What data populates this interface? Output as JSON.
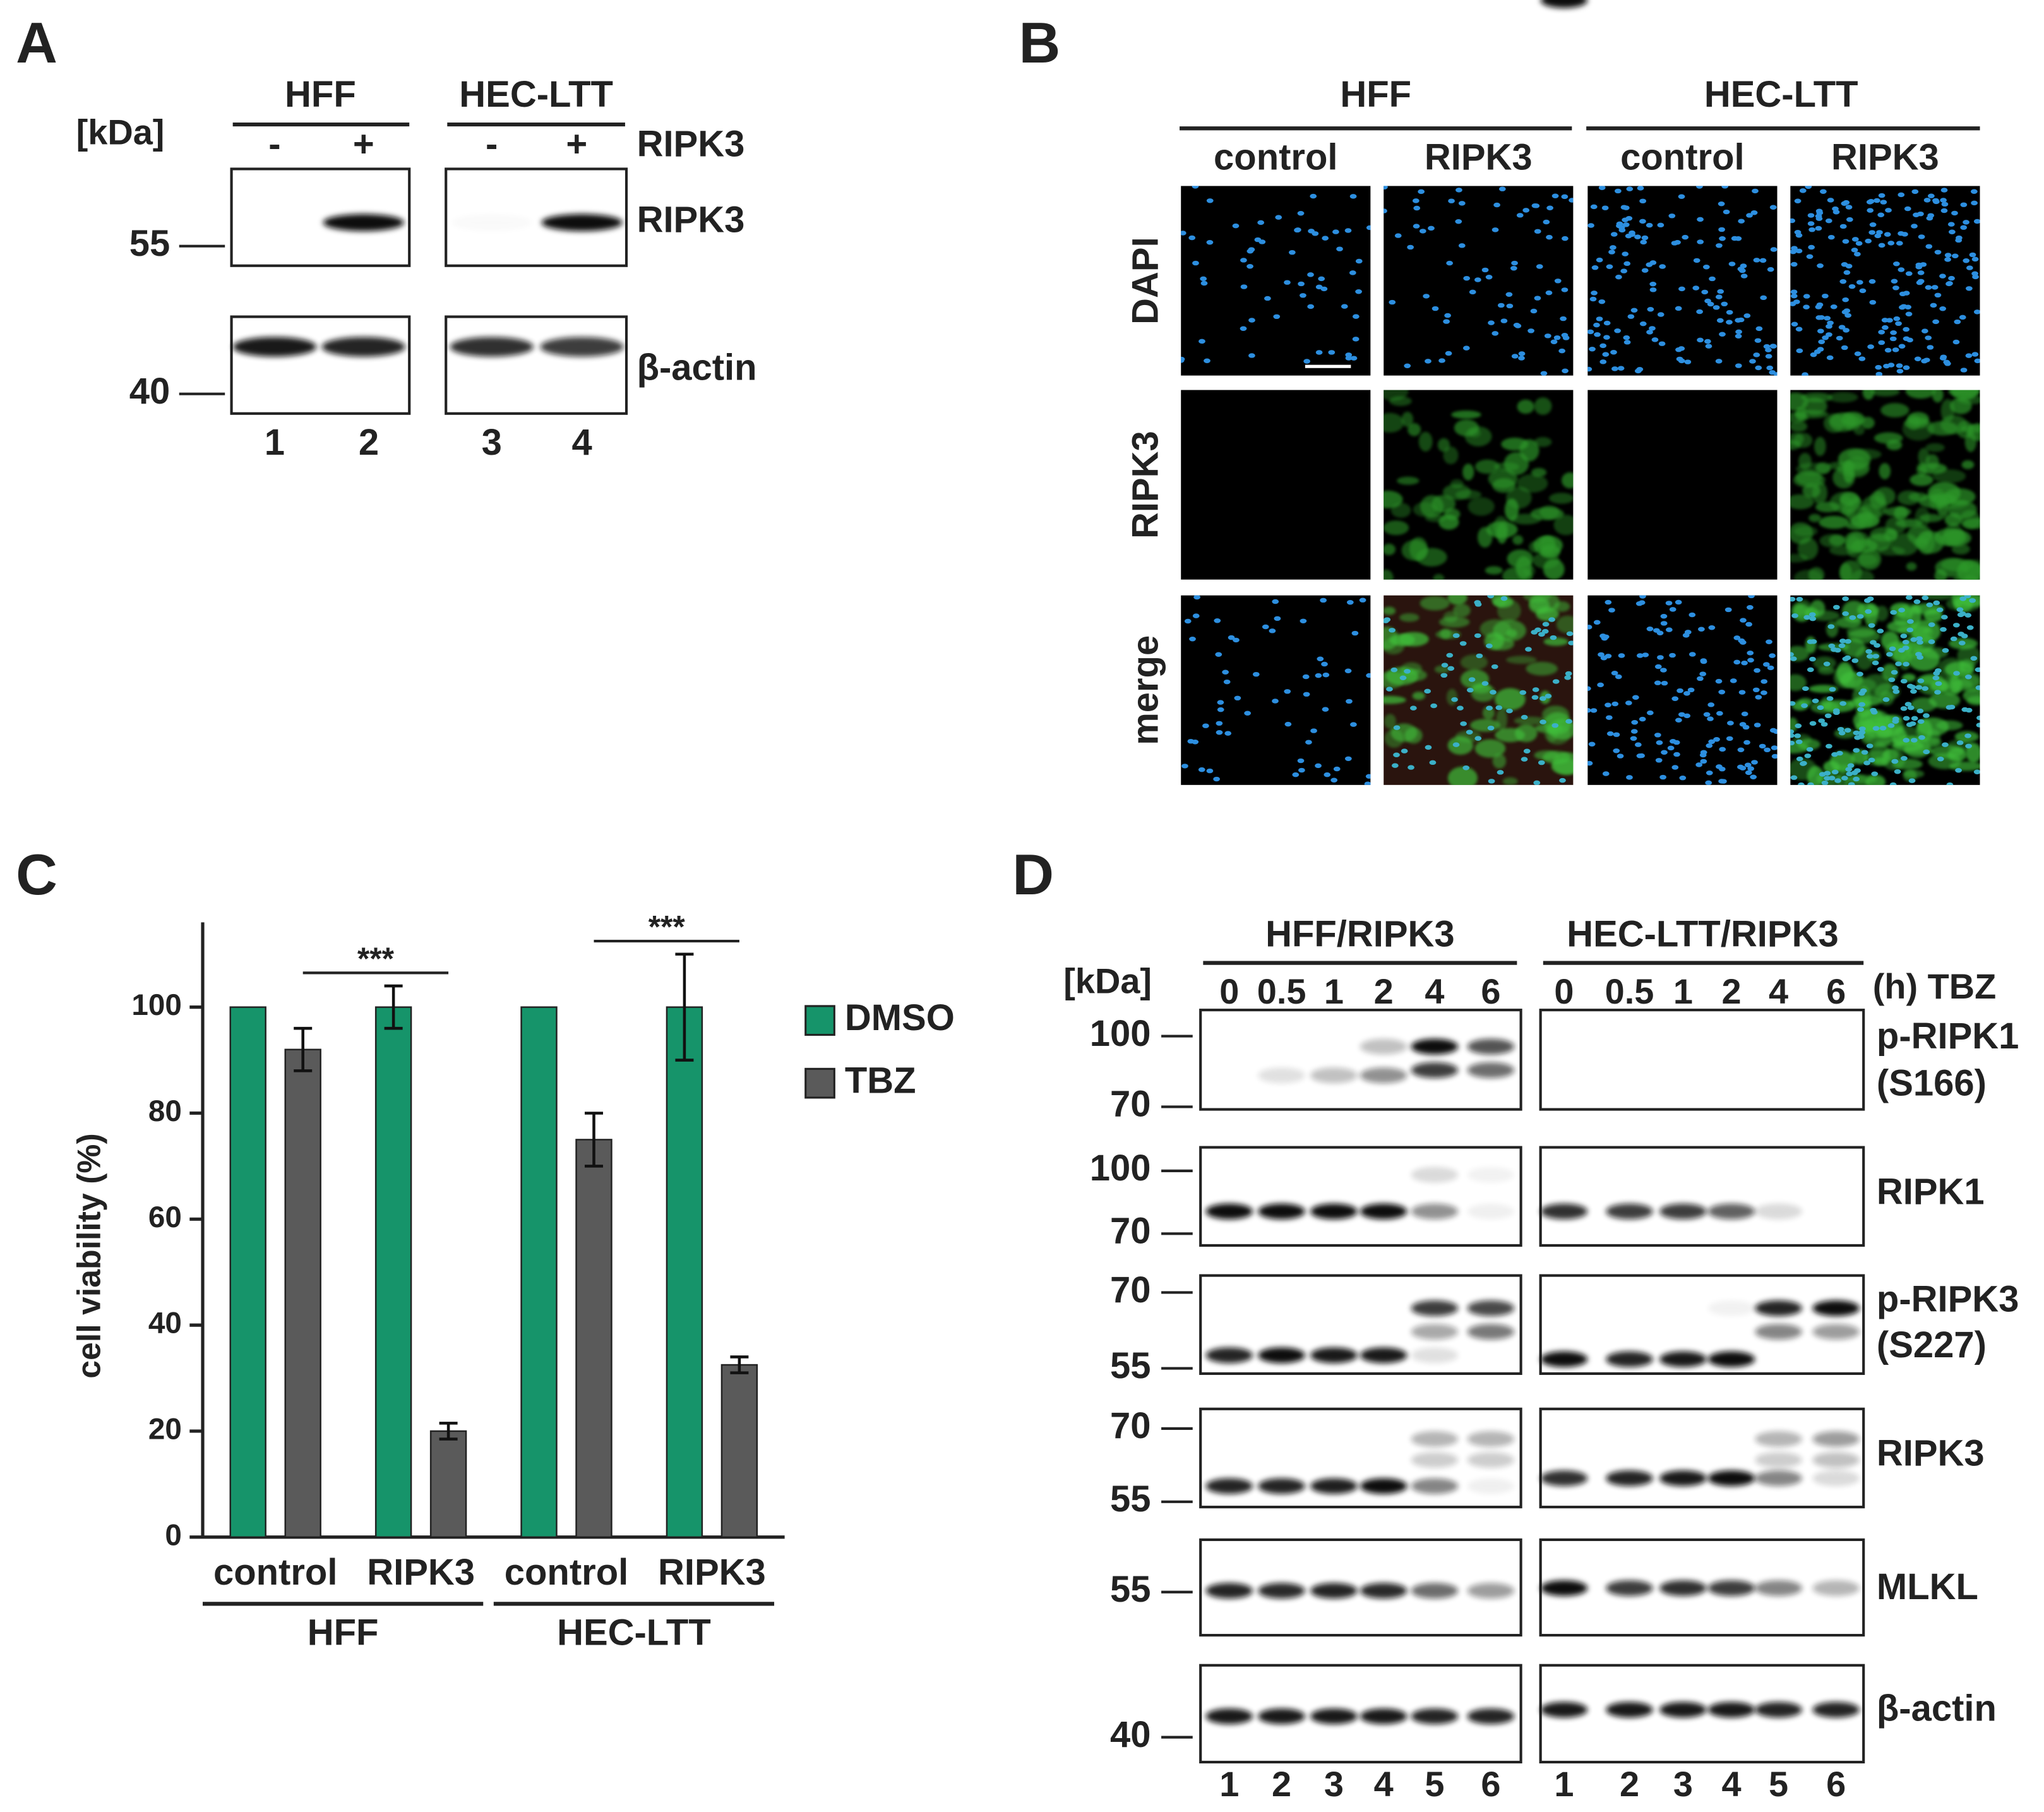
{
  "panel_a": {
    "letter": "A",
    "kda": "[kDa]",
    "groups": [
      "HFF",
      "HEC-LTT"
    ],
    "signs": [
      "-",
      "+",
      "-",
      "+"
    ],
    "row_label": "RIPK3",
    "blots": [
      {
        "label": "RIPK3",
        "markers": [
          "55"
        ]
      },
      {
        "label": "β-actin",
        "markers": [
          "40"
        ]
      }
    ],
    "lanes": [
      "1",
      "2",
      "3",
      "4"
    ]
  },
  "panel_b": {
    "letter": "B",
    "groups": [
      "HFF",
      "HEC-LTT"
    ],
    "columns": [
      "control",
      "RIPK3",
      "control",
      "RIPK3"
    ],
    "rows": [
      "DAPI",
      "RIPK3",
      "merge"
    ]
  },
  "chart_data": {
    "type": "bar",
    "panel_label": "C",
    "y_label": "cell viability (%)",
    "categories": [
      "control",
      "RIPK3",
      "control",
      "RIPK3"
    ],
    "category_groups": [
      "HFF",
      "HEC-LTT"
    ],
    "series": [
      {
        "name": "DMSO",
        "color": "#16946a",
        "values": [
          100,
          100,
          100,
          100
        ],
        "errors": [
          0,
          4,
          0,
          10
        ]
      },
      {
        "name": "TBZ",
        "color": "#5a5a5a",
        "values": [
          92,
          20,
          75,
          32.5
        ],
        "errors": [
          4,
          1.5,
          5,
          1.5
        ]
      }
    ],
    "annotations": [
      "***",
      "***"
    ],
    "ylim": [
      0,
      116
    ],
    "yticks": [
      0,
      20,
      40,
      60,
      80,
      100
    ],
    "legend": "right"
  },
  "panel_d": {
    "letter": "D",
    "groups": [
      "HFF/RIPK3",
      "HEC-LTT/RIPK3"
    ],
    "kda": "[kDa]",
    "times": [
      "0",
      "0.5",
      "1",
      "2",
      "4",
      "6"
    ],
    "treatment": "(h) TBZ",
    "blots": [
      {
        "label": [
          "p-RIPK1",
          "(S166)"
        ],
        "markers": [
          "100",
          "70"
        ]
      },
      {
        "label": [
          "RIPK1"
        ],
        "markers": [
          "100",
          "70"
        ]
      },
      {
        "label": [
          "p-RIPK3",
          "(S227)"
        ],
        "markers": [
          "70",
          "55"
        ]
      },
      {
        "label": [
          "RIPK3"
        ],
        "markers": [
          "70",
          "55"
        ]
      },
      {
        "label": [
          "MLKL"
        ],
        "markers": [
          "55"
        ]
      },
      {
        "label": [
          "β-actin"
        ],
        "markers": [
          "40"
        ]
      }
    ],
    "lanes": [
      "1",
      "2",
      "3",
      "4",
      "5",
      "6"
    ]
  }
}
